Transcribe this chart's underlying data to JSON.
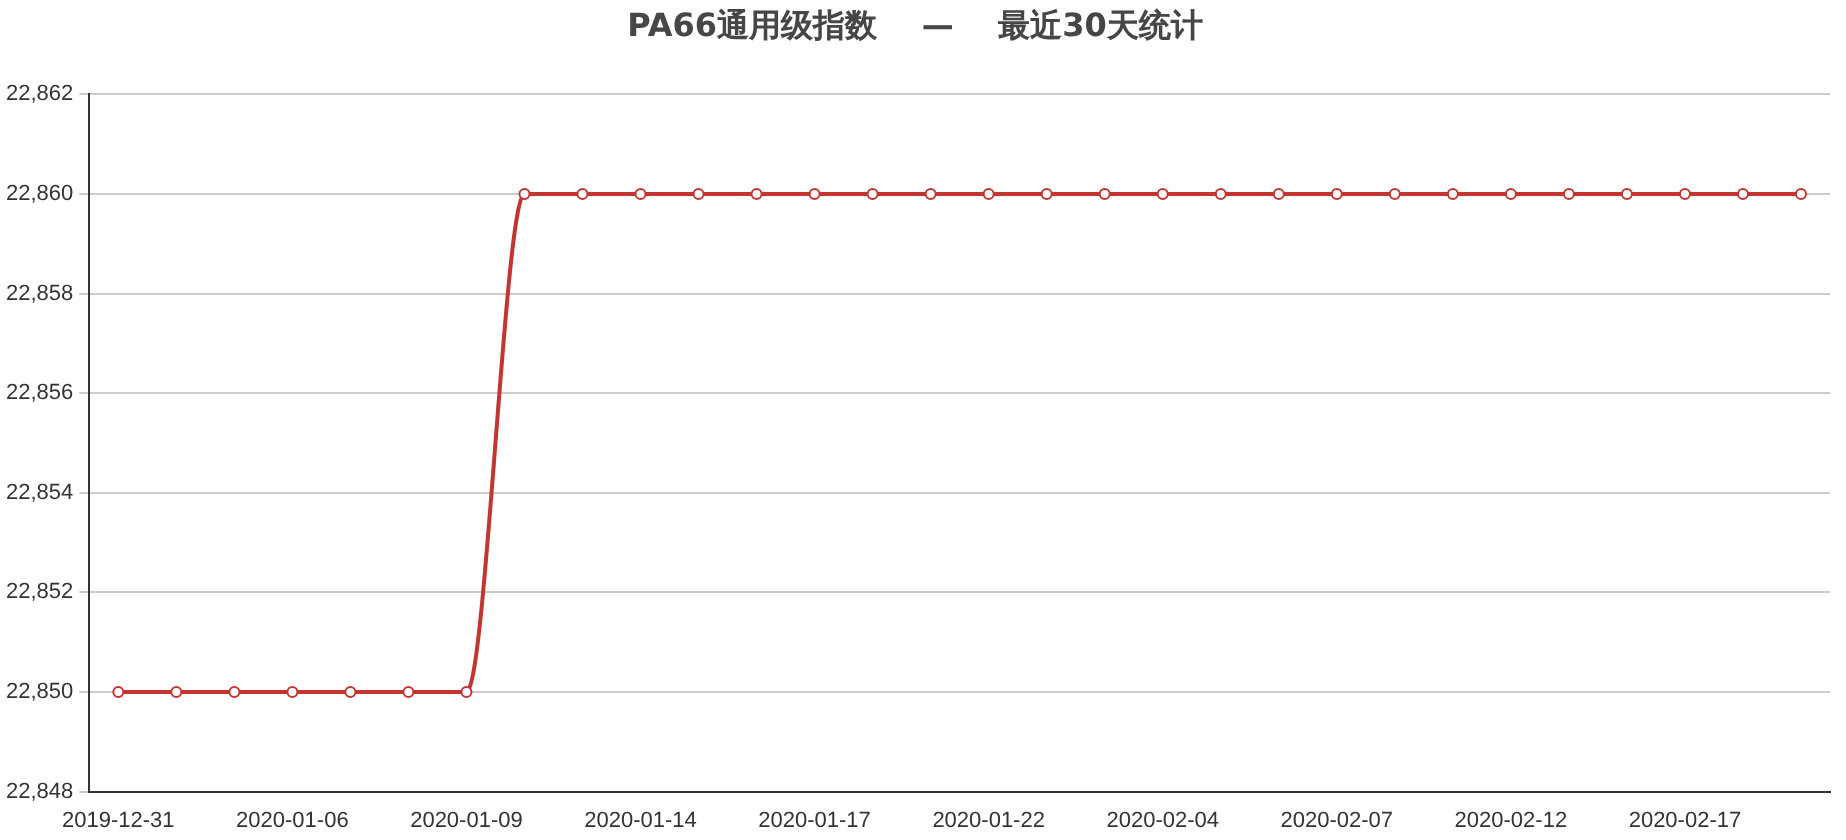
{
  "chart_data": {
    "type": "line",
    "title": "PA66通用级指数    —    最近30天统计",
    "categories": [
      "2019-12-31",
      null,
      null,
      "2020-01-06",
      null,
      null,
      "2020-01-09",
      null,
      null,
      "2020-01-14",
      null,
      null,
      "2020-01-17",
      null,
      null,
      "2020-01-22",
      null,
      null,
      "2020-02-04",
      null,
      null,
      "2020-02-07",
      null,
      null,
      "2020-02-12",
      null,
      null,
      "2020-02-17",
      null,
      null
    ],
    "series": [
      {
        "color": "#c23531",
        "values": [
          22850,
          22850,
          22850,
          22850,
          22850,
          22850,
          22850,
          22860,
          22860,
          22860,
          22860,
          22860,
          22860,
          22860,
          22860,
          22860,
          22860,
          22860,
          22860,
          22860,
          22860,
          22860,
          22860,
          22860,
          22860,
          22860,
          22860,
          22860,
          22860,
          22860
        ]
      }
    ],
    "ylim": [
      22848,
      22862
    ],
    "yticks": [
      {
        "value": 22848,
        "label": "22,848"
      },
      {
        "value": 22850,
        "label": "22,850"
      },
      {
        "value": 22852,
        "label": "22,852"
      },
      {
        "value": 22854,
        "label": "22,854"
      },
      {
        "value": 22856,
        "label": "22,856"
      },
      {
        "value": 22858,
        "label": "22,858"
      },
      {
        "value": 22860,
        "label": "22,860"
      },
      {
        "value": 22862,
        "label": "22,862"
      }
    ],
    "grid": "y",
    "legend": false,
    "marker": "circle",
    "line_style": "solid"
  }
}
